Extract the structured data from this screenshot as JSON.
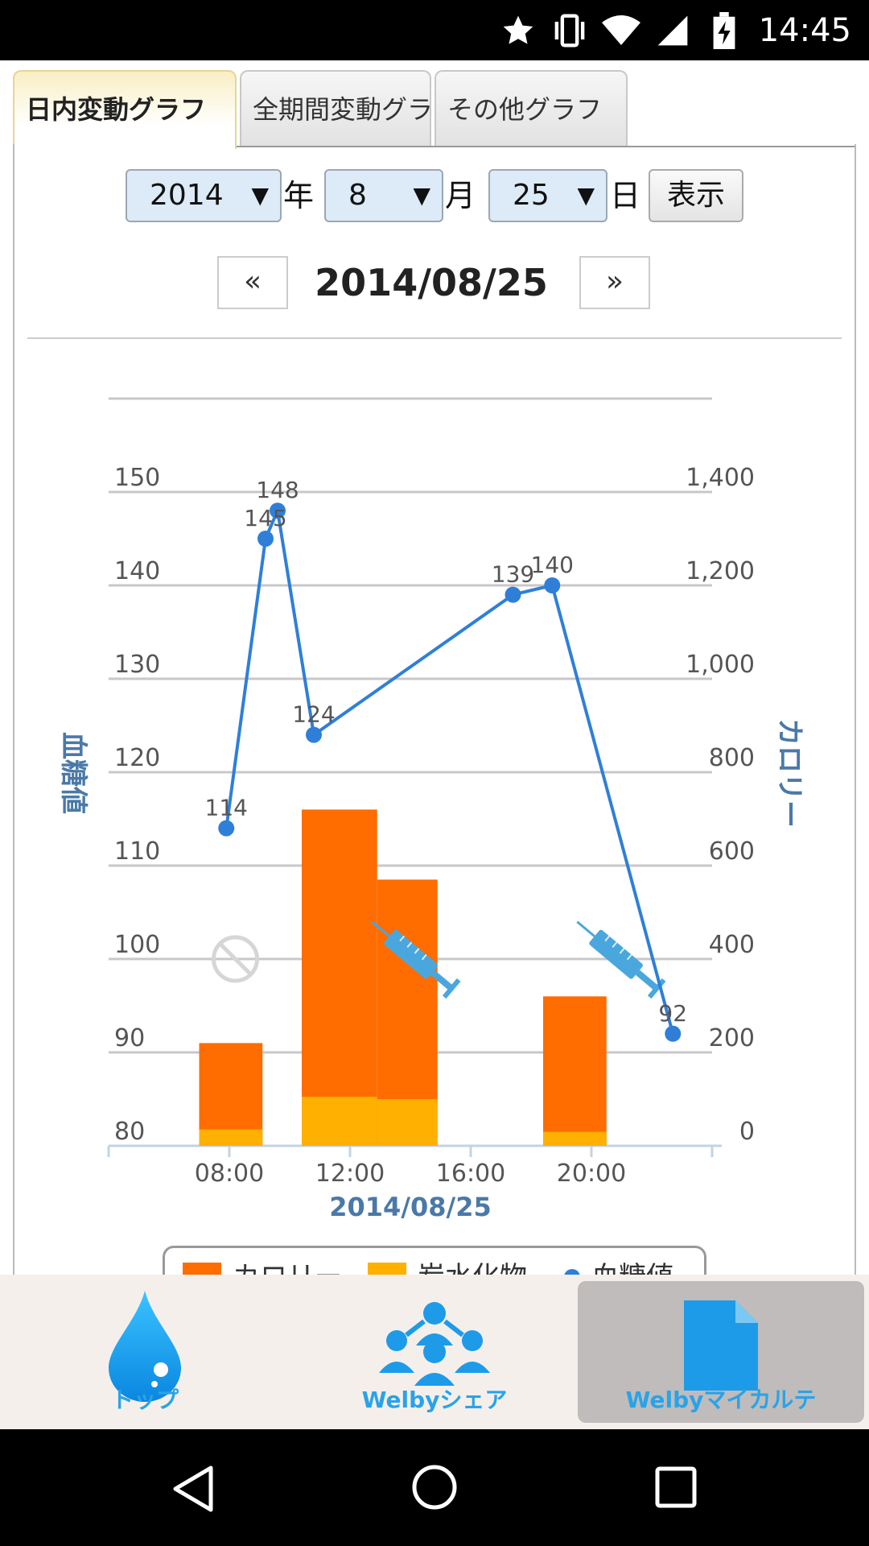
{
  "status_bar": {
    "time": "14:45"
  },
  "tabs": [
    {
      "label": "日内変動グラフ",
      "active": true
    },
    {
      "label": "全期間変動グラフ",
      "active": false
    },
    {
      "label": "その他グラフ",
      "active": false
    }
  ],
  "date_picker": {
    "year": "2014",
    "year_unit": "年",
    "month": "8",
    "month_unit": "月",
    "day": "25",
    "day_unit": "日",
    "show_button": "表示"
  },
  "date_nav": {
    "prev": "«",
    "current": "2014/08/25",
    "next": "»"
  },
  "chart_data": {
    "type": "bar+line",
    "xlabel": "2014/08/25",
    "ylabel_left": "血糖値",
    "ylabel_right": "カロリー",
    "x_ticks": [
      "08:00",
      "12:00",
      "16:00",
      "20:00"
    ],
    "left_ticks": [
      "80",
      "90",
      "100",
      "110",
      "120",
      "130",
      "140",
      "150"
    ],
    "right_ticks": [
      "0",
      "200",
      "400",
      "600",
      "800",
      "1,000",
      "1,200",
      "1,400"
    ],
    "left_range": [
      80,
      160
    ],
    "right_range": [
      0,
      1600
    ],
    "x_range_hours": [
      4,
      24
    ],
    "blood_glucose": {
      "name": "血糖値",
      "points": [
        {
          "t": 7.9,
          "v": 114,
          "label": "114"
        },
        {
          "t": 9.2,
          "v": 145,
          "label": "145"
        },
        {
          "t": 9.6,
          "v": 148,
          "label": "148"
        },
        {
          "t": 10.8,
          "v": 124,
          "label": "124"
        },
        {
          "t": 17.4,
          "v": 139,
          "label": "139"
        },
        {
          "t": 18.7,
          "v": 140,
          "label": "140"
        },
        {
          "t": 22.7,
          "v": 92,
          "label": "92"
        }
      ]
    },
    "meals": [
      {
        "t0": 7.0,
        "t1": 9.1,
        "calorie": 220,
        "carb": 35
      },
      {
        "t0": 10.4,
        "t1": 12.9,
        "calorie": 720,
        "carb": 105
      },
      {
        "t0": 12.9,
        "t1": 14.9,
        "calorie": 570,
        "carb": 100
      },
      {
        "t0": 18.4,
        "t1": 20.5,
        "calorie": 320,
        "carb": 30
      }
    ],
    "markers": [
      {
        "type": "no-entry",
        "t": 8.2,
        "v": 100
      },
      {
        "type": "syringe",
        "t": 14.2,
        "v": 100
      },
      {
        "type": "syringe",
        "t": 21.0,
        "v": 100
      }
    ],
    "legend": [
      "カロリー",
      "炭水化物",
      "血糖値"
    ],
    "colors": {
      "calorie": "#ff6c00",
      "carb": "#ffb000",
      "glucose": "#2f7fd8",
      "syringe": "#4aa7dd"
    }
  },
  "bottom_nav": [
    {
      "label": "トップ",
      "icon": "drop-icon"
    },
    {
      "label": "Welbyシェア",
      "icon": "people-icon"
    },
    {
      "label": "Welbyマイカルテ",
      "icon": "document-icon",
      "selected": true
    }
  ]
}
